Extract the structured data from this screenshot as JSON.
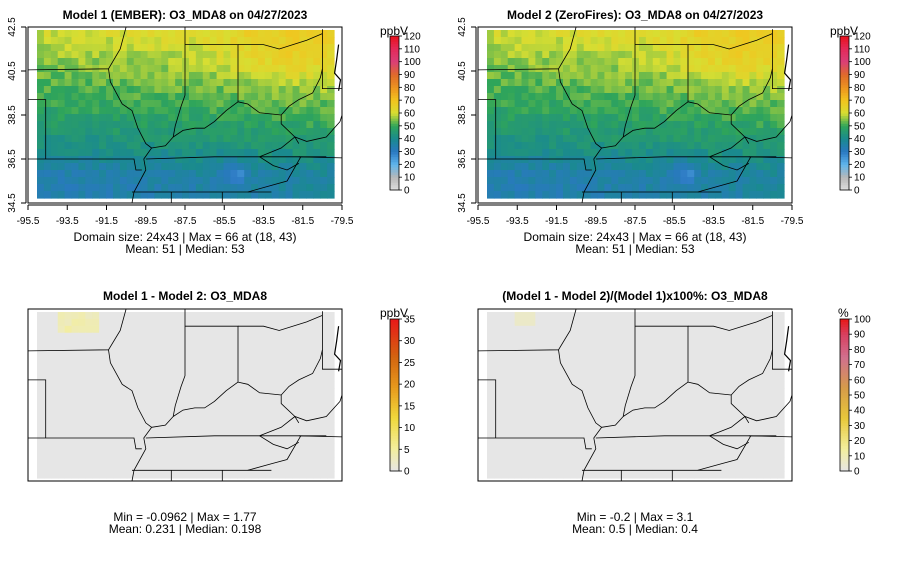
{
  "panels": [
    {
      "title": "Model 1 (EMBER): O3_MDA8 on 04/27/2023",
      "stats1": "Domain size: 24x43 | Max = 66 at (18, 43)",
      "stats2": "Mean: 51 |  Median: 53",
      "unit": "ppbV",
      "kind": "ozone"
    },
    {
      "title": "Model 2 (ZeroFires): O3_MDA8 on 04/27/2023",
      "stats1": "Domain size: 24x43 | Max = 66 at (18, 43)",
      "stats2": "Mean: 51 |  Median: 53",
      "unit": "ppbV",
      "kind": "ozone"
    },
    {
      "title": "Model 1 - Model 2: O3_MDA8",
      "stats1": "Min = -0.0962 | Max = 1.77",
      "stats2": "Mean: 0.231 |  Median: 0.198",
      "unit": "ppbV",
      "kind": "diff"
    },
    {
      "title": "(Model 1 - Model 2)/(Model 1)x100%: O3_MDA8",
      "stats1": "Min = -0.2 | Max = 3.1",
      "stats2": "Mean: 0.5 |  Median: 0.4",
      "unit": "%",
      "kind": "pct"
    }
  ],
  "chart_data": [
    {
      "type": "heatmap",
      "title": "Model 1 (EMBER): O3_MDA8 on 04/27/2023",
      "x_ticks": [
        "-95.5",
        "-93.5",
        "-91.5",
        "-89.5",
        "-87.5",
        "-85.5",
        "-83.5",
        "-81.5",
        "-79.5"
      ],
      "y_ticks": [
        "34.5",
        "36.5",
        "38.5",
        "40.5",
        "42.5"
      ],
      "xlim": [
        -95.5,
        -79.5
      ],
      "ylim": [
        34.5,
        42.5
      ],
      "colorbar_label": "ppbV",
      "colorbar_ticks": [
        0,
        10,
        20,
        30,
        40,
        50,
        60,
        70,
        80,
        90,
        100,
        110,
        120
      ],
      "grid_size": "24x43",
      "max": 66,
      "max_location": [
        18,
        43
      ],
      "mean": 51,
      "median": 53
    },
    {
      "type": "heatmap",
      "title": "Model 2 (ZeroFires): O3_MDA8 on 04/27/2023",
      "x_ticks": [
        "-95.5",
        "-93.5",
        "-91.5",
        "-89.5",
        "-87.5",
        "-85.5",
        "-83.5",
        "-81.5",
        "-79.5"
      ],
      "y_ticks": [
        "34.5",
        "36.5",
        "38.5",
        "40.5",
        "42.5"
      ],
      "xlim": [
        -95.5,
        -79.5
      ],
      "ylim": [
        34.5,
        42.5
      ],
      "colorbar_label": "ppbV",
      "colorbar_ticks": [
        0,
        10,
        20,
        30,
        40,
        50,
        60,
        70,
        80,
        90,
        100,
        110,
        120
      ],
      "grid_size": "24x43",
      "max": 66,
      "max_location": [
        18,
        43
      ],
      "mean": 51,
      "median": 53
    },
    {
      "type": "heatmap",
      "title": "Model 1 - Model 2: O3_MDA8",
      "colorbar_label": "ppbV",
      "colorbar_ticks": [
        0,
        5,
        10,
        15,
        20,
        25,
        30,
        35
      ],
      "min": -0.0962,
      "max": 1.77,
      "mean": 0.231,
      "median": 0.198
    },
    {
      "type": "heatmap",
      "title": "(Model 1 - Model 2)/(Model 1)x100%: O3_MDA8",
      "colorbar_label": "%",
      "colorbar_ticks": [
        0,
        10,
        20,
        30,
        40,
        50,
        60,
        70,
        80,
        90,
        100
      ],
      "min": -0.2,
      "max": 3.1,
      "mean": 0.5,
      "median": 0.4
    }
  ]
}
